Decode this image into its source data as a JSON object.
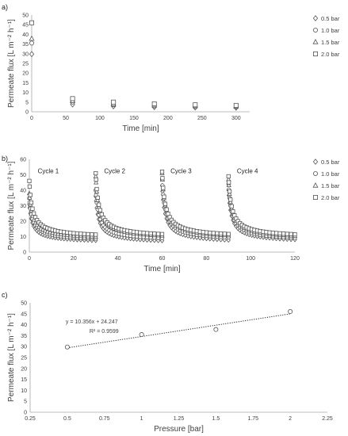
{
  "chart_data": [
    {
      "panel_label": "a)",
      "type": "scatter",
      "xlabel": "Time [min]",
      "ylabel": "Permeate flux [L m⁻² h⁻¹]",
      "xlim": [
        0,
        320
      ],
      "ylim": [
        0,
        50
      ],
      "xticks": [
        "0",
        "50",
        "100",
        "150",
        "200",
        "250",
        "300"
      ],
      "yticks": [
        "0",
        "5",
        "10",
        "15",
        "20",
        "25",
        "30",
        "35",
        "40",
        "45",
        "50"
      ],
      "grid": false,
      "legend_position": "right",
      "series": [
        {
          "name": "0.5 bar",
          "marker": "diamond",
          "x": [
            0,
            60,
            120,
            180,
            240,
            300
          ],
          "y": [
            29.8,
            3.8,
            2.8,
            2.4,
            2.2,
            2.1
          ]
        },
        {
          "name": "1.0 bar",
          "marker": "circle",
          "x": [
            0,
            60,
            120,
            180,
            240,
            300
          ],
          "y": [
            35.5,
            5.0,
            3.6,
            3.0,
            2.7,
            2.5
          ]
        },
        {
          "name": "1.5 bar",
          "marker": "triangle",
          "x": [
            0,
            60,
            120,
            180,
            240,
            300
          ],
          "y": [
            37.8,
            5.6,
            4.0,
            3.4,
            3.0,
            2.8
          ]
        },
        {
          "name": "2.0 bar",
          "marker": "square",
          "x": [
            0,
            60,
            120,
            180,
            240,
            300
          ],
          "y": [
            46.0,
            6.8,
            5.0,
            4.1,
            3.6,
            3.3
          ]
        }
      ]
    },
    {
      "panel_label": "b)",
      "type": "scatter",
      "xlabel": "Time [min]",
      "ylabel": "Permeate flux [L m⁻² h⁻¹]",
      "xlim": [
        0,
        120
      ],
      "ylim": [
        0,
        60
      ],
      "xticks": [
        "0",
        "20",
        "40",
        "60",
        "80",
        "100",
        "120"
      ],
      "yticks": [
        "0",
        "10",
        "20",
        "30",
        "40",
        "50",
        "60"
      ],
      "grid": false,
      "legend_position": "right",
      "cycle_labels": [
        {
          "text": "Cycle 1",
          "x": 2,
          "y": 51
        },
        {
          "text": "Cycle 2",
          "x": 32,
          "y": 51
        },
        {
          "text": "Cycle 3",
          "x": 62,
          "y": 51
        },
        {
          "text": "Cycle 4",
          "x": 92,
          "y": 51
        }
      ],
      "series": [
        {
          "name": "0.5 bar",
          "marker": "diamond",
          "cycles": [
            {
              "start": 0,
              "y_start": 31,
              "y_end": 6
            },
            {
              "start": 30,
              "y_start": 36,
              "y_end": 5.5
            },
            {
              "start": 60,
              "y_start": 43,
              "y_end": 5.5
            },
            {
              "start": 90,
              "y_start": 40,
              "y_end": 6
            }
          ]
        },
        {
          "name": "1.0 bar",
          "marker": "circle",
          "cycles": [
            {
              "start": 0,
              "y_start": 35,
              "y_end": 7
            },
            {
              "start": 30,
              "y_start": 40,
              "y_end": 7
            },
            {
              "start": 60,
              "y_start": 47,
              "y_end": 7
            },
            {
              "start": 90,
              "y_start": 44,
              "y_end": 7
            }
          ]
        },
        {
          "name": "1.5 bar",
          "marker": "triangle",
          "cycles": [
            {
              "start": 0,
              "y_start": 38,
              "y_end": 8
            },
            {
              "start": 30,
              "y_start": 49,
              "y_end": 8
            },
            {
              "start": 60,
              "y_start": 51,
              "y_end": 8
            },
            {
              "start": 90,
              "y_start": 47,
              "y_end": 8
            }
          ]
        },
        {
          "name": "2.0 bar",
          "marker": "square",
          "cycles": [
            {
              "start": 0,
              "y_start": 46,
              "y_end": 9
            },
            {
              "start": 30,
              "y_start": 51,
              "y_end": 9
            },
            {
              "start": 60,
              "y_start": 52,
              "y_end": 9
            },
            {
              "start": 90,
              "y_start": 49,
              "y_end": 9
            }
          ]
        }
      ]
    },
    {
      "panel_label": "c)",
      "type": "scatter",
      "xlabel": "Pressure [bar]",
      "ylabel": "Permeate flux [L m⁻² h⁻¹]",
      "xlim": [
        0.25,
        2.25
      ],
      "ylim": [
        0,
        50
      ],
      "xticks": [
        "0.25",
        "0.5",
        "0.75",
        "1",
        "1.25",
        "1.5",
        "1.75",
        "2",
        "2.25"
      ],
      "yticks": [
        "0",
        "5",
        "10",
        "15",
        "20",
        "25",
        "30",
        "35",
        "40",
        "45",
        "50"
      ],
      "grid": false,
      "equation": "y = 10.356x + 24.247",
      "r_squared": "R² = 0.9599",
      "trendline": {
        "slope": 10.356,
        "intercept": 24.247,
        "x_range": [
          0.5,
          2.0
        ]
      },
      "series": [
        {
          "marker": "circle",
          "x": [
            0.5,
            1.0,
            1.5,
            2.0
          ],
          "y": [
            29.8,
            35.5,
            37.8,
            46.0
          ]
        }
      ]
    }
  ]
}
